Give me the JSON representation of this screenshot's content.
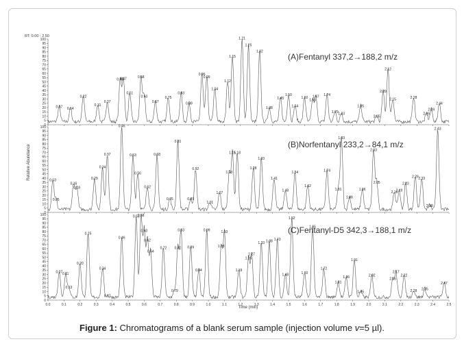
{
  "rt_range": "RT: 0.00 - 2.50",
  "ylabel": "Relative Abundance",
  "xlabel": "Time (min)",
  "x_ticks": [
    "0.0",
    "0.1",
    "0.2",
    "0.3",
    "0.4",
    "0.5",
    "0.6",
    "0.7",
    "0.8",
    "0.9",
    "1.0",
    "1.1",
    "1.2",
    "1.3",
    "1.4",
    "1.5",
    "1.6",
    "1.7",
    "1.8",
    "1.9",
    "2.0",
    "2.1",
    "2.2",
    "2.3",
    "2.4",
    "2.5"
  ],
  "y_ticks": [
    "0",
    "5",
    "10",
    "15",
    "20",
    "25",
    "30",
    "35",
    "40",
    "45",
    "50",
    "55",
    "60",
    "65",
    "70",
    "75",
    "80",
    "85",
    "90",
    "95",
    "100"
  ],
  "caption": {
    "label": "Figure 1:",
    "text_before": " Chromatograms of a blank serum sample (injection volume ",
    "variable": "v",
    "text_after": "=5 µl)."
  },
  "chart_data": [
    {
      "type": "line",
      "title": "(A)Fentanyl 337,2→188,2 m/z",
      "xlim": [
        0,
        2.5
      ],
      "ylim": [
        0,
        100
      ],
      "peaks": [
        {
          "x": 0.07,
          "y": 18
        },
        {
          "x": 0.14,
          "y": 16
        },
        {
          "x": 0.22,
          "y": 30
        },
        {
          "x": 0.31,
          "y": 20
        },
        {
          "x": 0.37,
          "y": 24
        },
        {
          "x": 0.45,
          "y": 50
        },
        {
          "x": 0.47,
          "y": 51
        },
        {
          "x": 0.51,
          "y": 34
        },
        {
          "x": 0.58,
          "y": 53
        },
        {
          "x": 0.6,
          "y": 30
        },
        {
          "x": 0.67,
          "y": 24
        },
        {
          "x": 0.75,
          "y": 29
        },
        {
          "x": 0.83,
          "y": 34
        },
        {
          "x": 0.88,
          "y": 22
        },
        {
          "x": 0.96,
          "y": 56
        },
        {
          "x": 0.99,
          "y": 53
        },
        {
          "x": 1.04,
          "y": 39
        },
        {
          "x": 1.12,
          "y": 48
        },
        {
          "x": 1.15,
          "y": 77
        },
        {
          "x": 1.21,
          "y": 98
        },
        {
          "x": 1.25,
          "y": 90
        },
        {
          "x": 1.32,
          "y": 83
        },
        {
          "x": 1.38,
          "y": 17
        },
        {
          "x": 1.45,
          "y": 28
        },
        {
          "x": 1.5,
          "y": 32
        },
        {
          "x": 1.54,
          "y": 19
        },
        {
          "x": 1.6,
          "y": 29
        },
        {
          "x": 1.65,
          "y": 26
        },
        {
          "x": 1.67,
          "y": 30
        },
        {
          "x": 1.74,
          "y": 32
        },
        {
          "x": 1.79,
          "y": 12
        },
        {
          "x": 1.83,
          "y": 10
        },
        {
          "x": 1.95,
          "y": 19
        },
        {
          "x": 2.05,
          "y": 7
        },
        {
          "x": 2.09,
          "y": 36
        },
        {
          "x": 2.12,
          "y": 62
        },
        {
          "x": 2.15,
          "y": 27
        },
        {
          "x": 2.28,
          "y": 29
        },
        {
          "x": 2.36,
          "y": 10
        },
        {
          "x": 2.39,
          "y": 15
        },
        {
          "x": 2.44,
          "y": 22
        }
      ]
    },
    {
      "type": "line",
      "title": "(B)Norfentanyl  233,2→84,1 m/z",
      "xlim": [
        0,
        2.5
      ],
      "ylim": [
        0,
        100
      ],
      "peaks": [
        {
          "x": 0.03,
          "y": 35
        },
        {
          "x": 0.05,
          "y": 12
        },
        {
          "x": 0.16,
          "y": 31
        },
        {
          "x": 0.18,
          "y": 26
        },
        {
          "x": 0.29,
          "y": 37
        },
        {
          "x": 0.34,
          "y": 50
        },
        {
          "x": 0.37,
          "y": 65
        },
        {
          "x": 0.46,
          "y": 98
        },
        {
          "x": 0.53,
          "y": 64
        },
        {
          "x": 0.56,
          "y": 43
        },
        {
          "x": 0.62,
          "y": 27
        },
        {
          "x": 0.68,
          "y": 65
        },
        {
          "x": 0.76,
          "y": 13
        },
        {
          "x": 0.81,
          "y": 80
        },
        {
          "x": 0.89,
          "y": 13
        },
        {
          "x": 0.92,
          "y": 48
        },
        {
          "x": 1.01,
          "y": 9
        },
        {
          "x": 1.07,
          "y": 20
        },
        {
          "x": 1.13,
          "y": 44
        },
        {
          "x": 1.15,
          "y": 67
        },
        {
          "x": 1.18,
          "y": 67
        },
        {
          "x": 1.28,
          "y": 49
        },
        {
          "x": 1.33,
          "y": 60
        },
        {
          "x": 1.41,
          "y": 37
        },
        {
          "x": 1.48,
          "y": 23
        },
        {
          "x": 1.54,
          "y": 44
        },
        {
          "x": 1.62,
          "y": 28
        },
        {
          "x": 1.74,
          "y": 46
        },
        {
          "x": 1.81,
          "y": 24
        },
        {
          "x": 1.83,
          "y": 84
        },
        {
          "x": 1.88,
          "y": 15
        },
        {
          "x": 1.96,
          "y": 24
        },
        {
          "x": 2.03,
          "y": 70
        },
        {
          "x": 2.05,
          "y": 32
        },
        {
          "x": 2.16,
          "y": 21
        },
        {
          "x": 2.19,
          "y": 23
        },
        {
          "x": 2.23,
          "y": 31
        },
        {
          "x": 2.29,
          "y": 39
        },
        {
          "x": 2.33,
          "y": 37
        },
        {
          "x": 2.38,
          "y": 5
        },
        {
          "x": 2.43,
          "y": 95
        }
      ]
    },
    {
      "type": "line",
      "title": "(C)Fentanyl-D5 342,3→188,1 m/z",
      "xlim": [
        0,
        2.5
      ],
      "ylim": [
        0,
        100
      ],
      "peaks": [
        {
          "x": 0.07,
          "y": 30
        },
        {
          "x": 0.11,
          "y": 28
        },
        {
          "x": 0.13,
          "y": 12
        },
        {
          "x": 0.2,
          "y": 40
        },
        {
          "x": 0.25,
          "y": 75
        },
        {
          "x": 0.34,
          "y": 34
        },
        {
          "x": 0.37,
          "y": 2
        },
        {
          "x": 0.46,
          "y": 70
        },
        {
          "x": 0.55,
          "y": 95
        },
        {
          "x": 0.58,
          "y": 96
        },
        {
          "x": 0.6,
          "y": 78
        },
        {
          "x": 0.62,
          "y": 67
        },
        {
          "x": 0.64,
          "y": 54
        },
        {
          "x": 0.72,
          "y": 58
        },
        {
          "x": 0.79,
          "y": 8
        },
        {
          "x": 0.81,
          "y": 58
        },
        {
          "x": 0.83,
          "y": 79
        },
        {
          "x": 0.89,
          "y": 59
        },
        {
          "x": 0.94,
          "y": 32
        },
        {
          "x": 0.99,
          "y": 79
        },
        {
          "x": 1.08,
          "y": 60
        },
        {
          "x": 1.1,
          "y": 77
        },
        {
          "x": 1.19,
          "y": 32
        },
        {
          "x": 1.25,
          "y": 46
        },
        {
          "x": 1.27,
          "y": 51
        },
        {
          "x": 1.33,
          "y": 64
        },
        {
          "x": 1.38,
          "y": 66
        },
        {
          "x": 1.43,
          "y": 68
        },
        {
          "x": 1.48,
          "y": 27
        },
        {
          "x": 1.52,
          "y": 93
        },
        {
          "x": 1.6,
          "y": 29
        },
        {
          "x": 1.65,
          "y": 83
        },
        {
          "x": 1.72,
          "y": 34
        },
        {
          "x": 1.81,
          "y": 18
        },
        {
          "x": 1.86,
          "y": 24
        },
        {
          "x": 1.91,
          "y": 44
        },
        {
          "x": 1.95,
          "y": 7
        },
        {
          "x": 2.02,
          "y": 26
        },
        {
          "x": 2.15,
          "y": 22
        },
        {
          "x": 2.17,
          "y": 30
        },
        {
          "x": 2.22,
          "y": 26
        },
        {
          "x": 2.28,
          "y": 8
        },
        {
          "x": 2.35,
          "y": 10
        },
        {
          "x": 2.47,
          "y": 17
        }
      ]
    }
  ]
}
